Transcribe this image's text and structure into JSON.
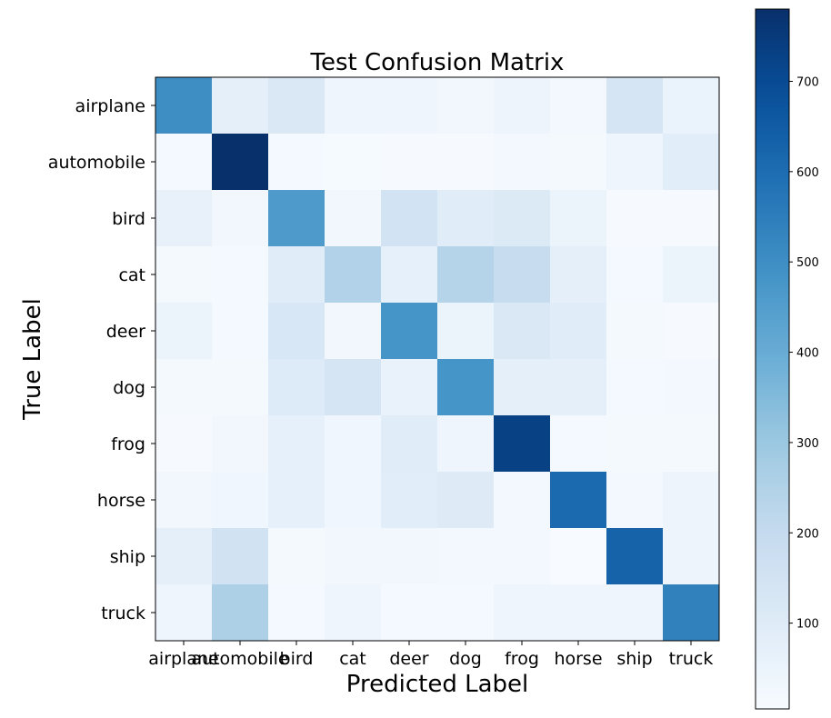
{
  "chart_data": {
    "type": "heatmap",
    "title": "Test Confusion Matrix",
    "xlabel": "Predicted Label",
    "ylabel": "True Label",
    "x_categories": [
      "airplane",
      "automobile",
      "bird",
      "cat",
      "deer",
      "dog",
      "frog",
      "horse",
      "ship",
      "truck"
    ],
    "y_categories": [
      "airplane",
      "automobile",
      "bird",
      "cat",
      "deer",
      "dog",
      "frog",
      "horse",
      "ship",
      "truck"
    ],
    "values": [
      [
        500,
        80,
        120,
        40,
        40,
        30,
        45,
        25,
        140,
        55
      ],
      [
        20,
        780,
        20,
        12,
        10,
        10,
        25,
        15,
        40,
        90
      ],
      [
        65,
        30,
        460,
        30,
        150,
        95,
        110,
        50,
        10,
        10
      ],
      [
        15,
        20,
        95,
        250,
        70,
        240,
        190,
        75,
        20,
        50
      ],
      [
        50,
        20,
        125,
        30,
        480,
        50,
        120,
        95,
        15,
        10
      ],
      [
        15,
        15,
        105,
        140,
        60,
        480,
        80,
        75,
        20,
        25
      ],
      [
        10,
        30,
        70,
        35,
        95,
        40,
        730,
        20,
        15,
        15
      ],
      [
        30,
        35,
        70,
        35,
        90,
        100,
        25,
        610,
        25,
        45
      ],
      [
        80,
        155,
        15,
        30,
        30,
        25,
        25,
        5,
        630,
        45
      ],
      [
        40,
        260,
        20,
        40,
        20,
        20,
        40,
        40,
        40,
        540
      ]
    ],
    "colormap": "Blues",
    "colorbar": {
      "min": 5,
      "max": 780,
      "ticks": [
        100,
        200,
        300,
        400,
        500,
        600,
        700
      ]
    }
  }
}
